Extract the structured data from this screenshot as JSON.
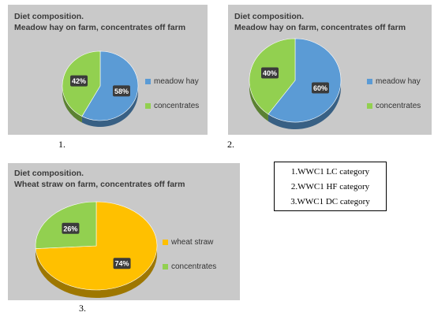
{
  "panels": [
    {
      "title_line1": "Diet composition.",
      "title_line2": "Meadow hay on farm, concentrates off farm",
      "caption": "1."
    },
    {
      "title_line1": "Diet composition.",
      "title_line2": "Meadow hay on farm, concentrates off farm",
      "caption": "2."
    },
    {
      "title_line1": "Diet composition.",
      "title_line2": "Wheat straw on farm, concentrates off farm",
      "caption": "3."
    }
  ],
  "key_box": {
    "lines": [
      "1.WWC1 LC category",
      "2.WWC1 HF category",
      "3.WWC1 DC category"
    ]
  },
  "chart_data": [
    {
      "type": "pie",
      "title": "Diet composition. Meadow hay on farm, concentrates off farm",
      "labels": [
        "meadow hay",
        "concentrates"
      ],
      "values": [
        58,
        42
      ],
      "value_labels": [
        "58%",
        "42%"
      ],
      "colors": [
        "#5b9bd5",
        "#92d050"
      ],
      "legend_position": "right"
    },
    {
      "type": "pie",
      "title": "Diet composition. Meadow hay on farm, concentrates off farm",
      "labels": [
        "meadow hay",
        "concentrates"
      ],
      "values": [
        60,
        40
      ],
      "value_labels": [
        "60%",
        "40%"
      ],
      "colors": [
        "#5b9bd5",
        "#92d050"
      ],
      "legend_position": "right"
    },
    {
      "type": "pie",
      "title": "Diet composition. Wheat straw on farm, concentrates off farm",
      "labels": [
        "wheat straw",
        "concentrates"
      ],
      "values": [
        74,
        26
      ],
      "value_labels": [
        "74%",
        "26%"
      ],
      "colors": [
        "#ffc000",
        "#92d050"
      ],
      "legend_position": "right"
    }
  ]
}
